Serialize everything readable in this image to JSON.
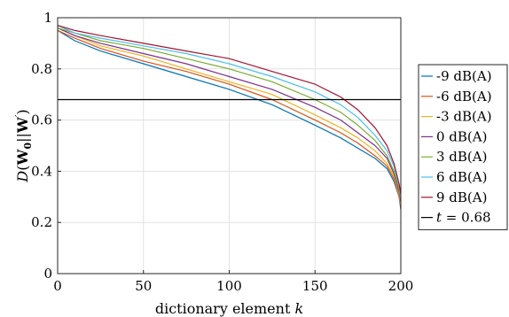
{
  "chart_data": {
    "type": "line",
    "xlabel": "dictionary element k",
    "ylabel": "D(W0||W')",
    "xlim": [
      0,
      200
    ],
    "ylim": [
      0,
      1
    ],
    "x_ticks": [
      0,
      50,
      100,
      150,
      200
    ],
    "y_ticks": [
      0,
      0.2,
      0.4,
      0.6,
      0.8,
      1
    ],
    "x_tick_labels": [
      "0",
      "50",
      "100",
      "150",
      "200"
    ],
    "y_tick_labels": [
      "0",
      "0.2",
      "0.4",
      "0.6",
      "0.8",
      "1"
    ],
    "grid": true,
    "legend_position": "outside-right",
    "x": [
      0,
      10,
      25,
      50,
      75,
      100,
      125,
      150,
      165,
      175,
      185,
      192,
      196,
      199,
      200
    ],
    "series": [
      {
        "name": "-9 dB(A)",
        "color": "#0072BD",
        "values": [
          0.95,
          0.91,
          0.87,
          0.82,
          0.77,
          0.72,
          0.66,
          0.58,
          0.53,
          0.49,
          0.45,
          0.41,
          0.36,
          0.3,
          0.25
        ]
      },
      {
        "name": "-6 dB(A)",
        "color": "#D95319",
        "values": [
          0.95,
          0.92,
          0.88,
          0.83,
          0.79,
          0.74,
          0.68,
          0.6,
          0.55,
          0.51,
          0.46,
          0.42,
          0.37,
          0.3,
          0.26
        ]
      },
      {
        "name": "-3 dB(A)",
        "color": "#EDB120",
        "values": [
          0.96,
          0.93,
          0.89,
          0.85,
          0.8,
          0.75,
          0.7,
          0.62,
          0.57,
          0.53,
          0.48,
          0.43,
          0.38,
          0.31,
          0.27
        ]
      },
      {
        "name": "0 dB(A)",
        "color": "#7E2F8E",
        "values": [
          0.96,
          0.93,
          0.9,
          0.86,
          0.82,
          0.77,
          0.72,
          0.65,
          0.6,
          0.55,
          0.5,
          0.45,
          0.39,
          0.32,
          0.28
        ]
      },
      {
        "name": "3 dB(A)",
        "color": "#77AC30",
        "values": [
          0.96,
          0.94,
          0.91,
          0.88,
          0.84,
          0.8,
          0.75,
          0.68,
          0.63,
          0.58,
          0.52,
          0.46,
          0.4,
          0.33,
          0.29
        ]
      },
      {
        "name": "6 dB(A)",
        "color": "#4DBEEE",
        "values": [
          0.97,
          0.94,
          0.92,
          0.89,
          0.86,
          0.82,
          0.77,
          0.71,
          0.66,
          0.61,
          0.54,
          0.48,
          0.42,
          0.34,
          0.3
        ]
      },
      {
        "name": "9 dB(A)",
        "color": "#A2142F",
        "values": [
          0.97,
          0.95,
          0.93,
          0.9,
          0.87,
          0.84,
          0.79,
          0.74,
          0.69,
          0.64,
          0.57,
          0.5,
          0.43,
          0.35,
          0.31
        ]
      }
    ],
    "threshold": {
      "name": "t = 0.68",
      "value": 0.68,
      "color": "#000000"
    }
  }
}
